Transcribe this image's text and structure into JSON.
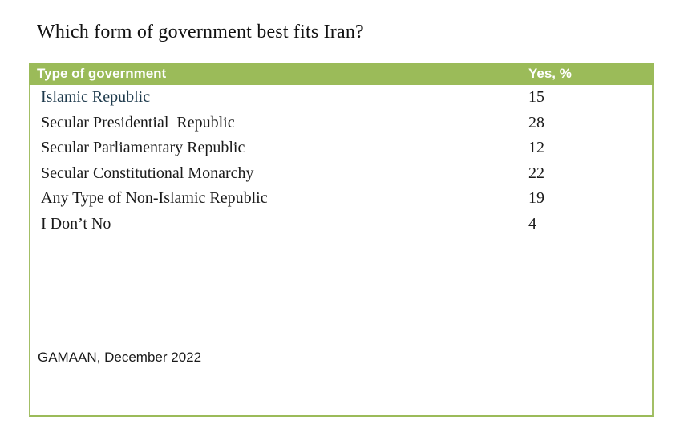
{
  "title": "Which form of government best fits Iran?",
  "table": {
    "headers": [
      "Type of government",
      "Yes, %"
    ],
    "rows": [
      {
        "label": "Islamic Republic",
        "value": "15",
        "highlighted": true
      },
      {
        "label": "Secular Presidential  Republic",
        "value": "28",
        "highlighted": false
      },
      {
        "label": "Secular Parliamentary Republic",
        "value": "12",
        "highlighted": false
      },
      {
        "label": "Secular Constitutional Monarchy",
        "value": "22",
        "highlighted": false
      },
      {
        "label": "Any Type of Non-Islamic Republic",
        "value": "19",
        "highlighted": false
      },
      {
        "label": "I Don’t No",
        "value": "4",
        "highlighted": false
      }
    ]
  },
  "source": "GAMAAN, December 2022",
  "colors": {
    "header_bg": "#9bbb59",
    "header_text": "#ffffff",
    "table_border": "#9fbd60",
    "highlight_row_text": "#1f3b4d",
    "body_text": "#1a1a1a",
    "background": "#ffffff"
  },
  "chart_data": {
    "type": "table",
    "title": "Which form of government best fits Iran?",
    "columns": [
      "Type of government",
      "Yes, %"
    ],
    "categories": [
      "Islamic Republic",
      "Secular Presidential Republic",
      "Secular Parliamentary Republic",
      "Secular Constitutional Monarchy",
      "Any Type of Non-Islamic Republic",
      "I Don’t No"
    ],
    "values": [
      15,
      28,
      12,
      22,
      19,
      4
    ],
    "source": "GAMAAN, December 2022",
    "legend_position": "none",
    "grid": false
  }
}
